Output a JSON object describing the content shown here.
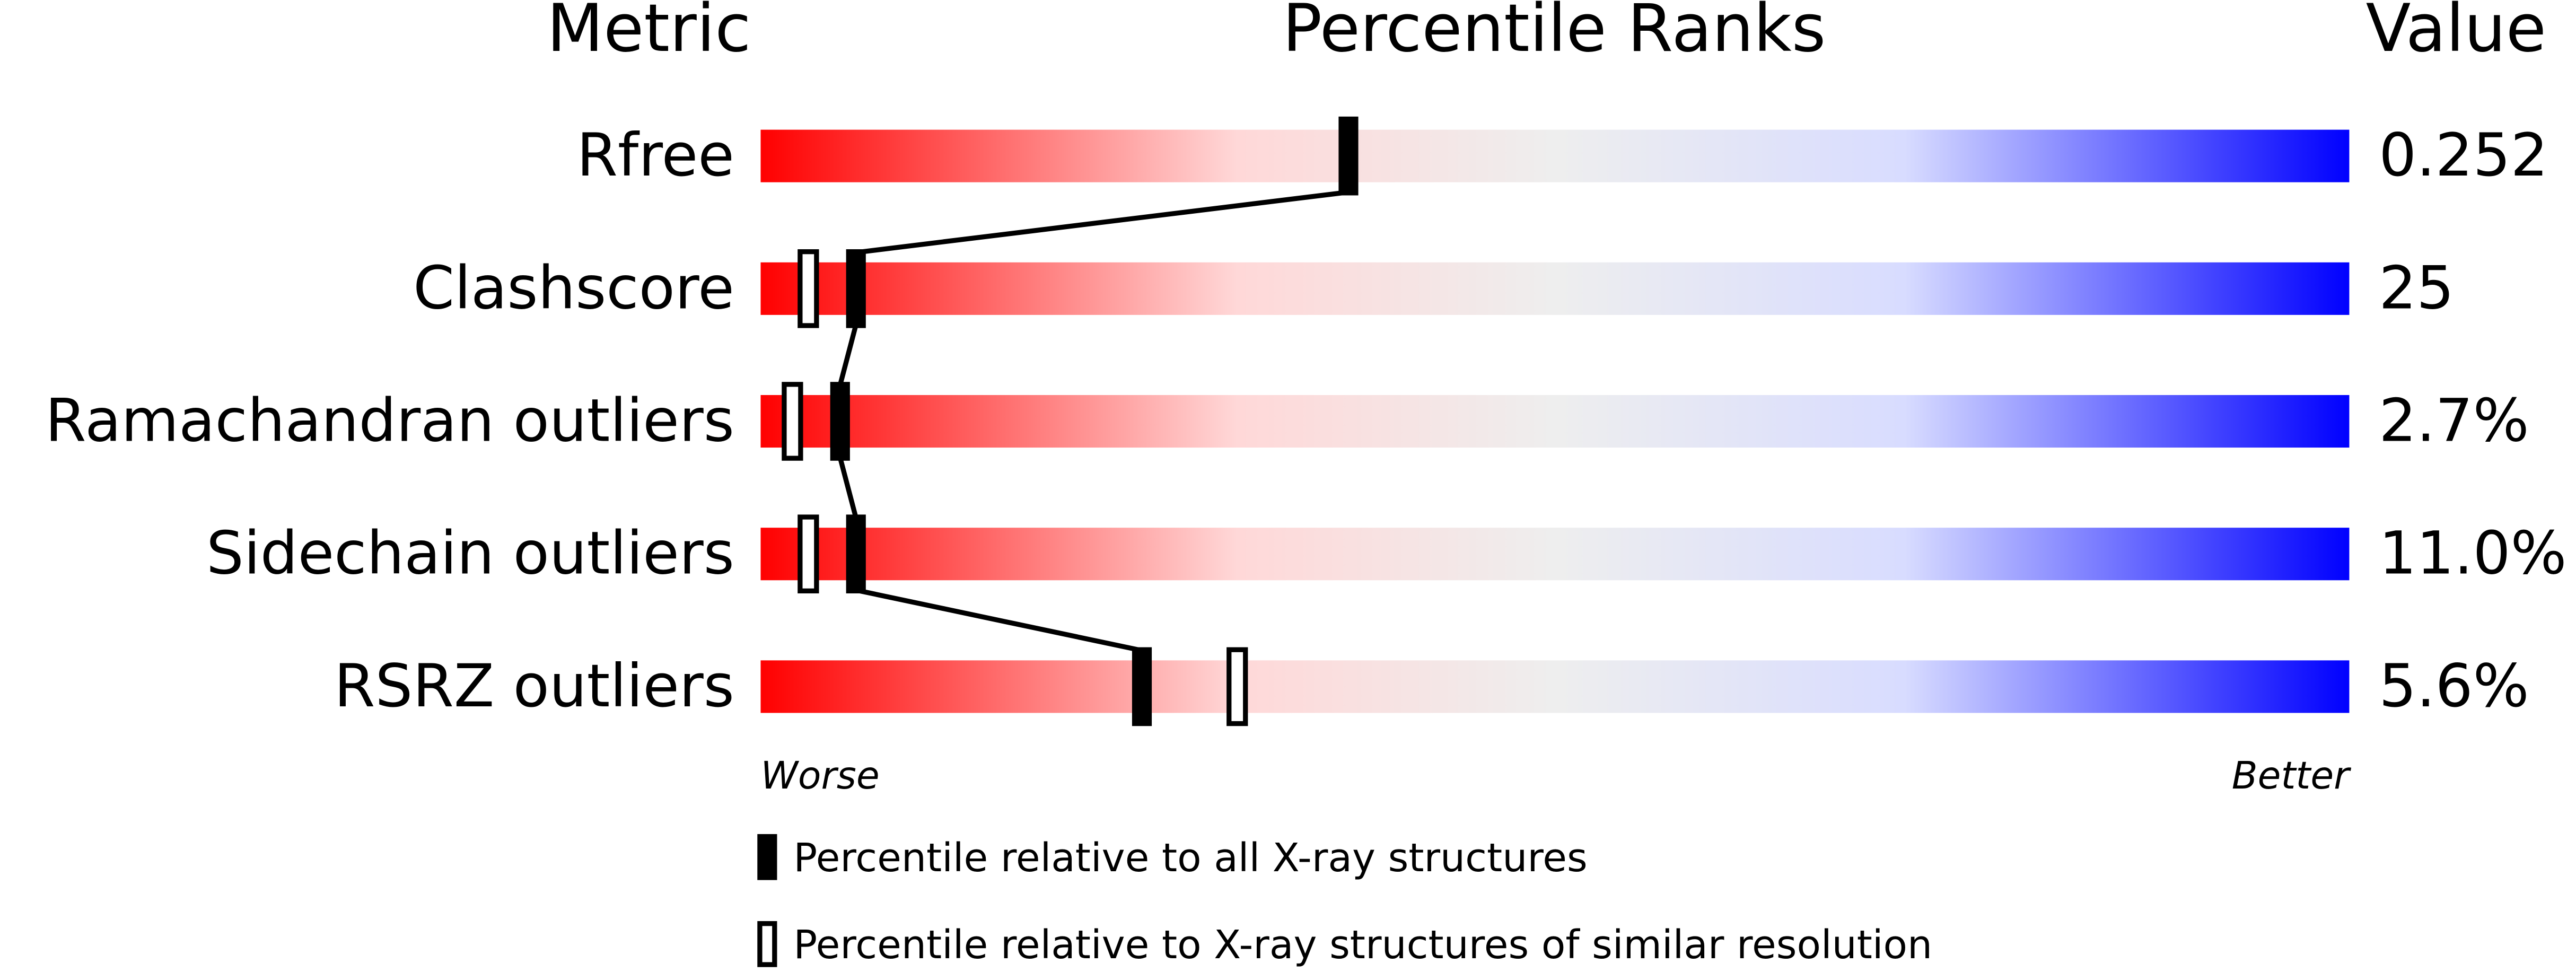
{
  "chart_data": {
    "type": "percentile",
    "title": "Percentile Ranks",
    "metric_header": "Metric",
    "value_header": "Value",
    "categories": [
      "Rfree",
      "Clashscore",
      "Ramachandran outliers",
      "Sidechain outliers",
      "RSRZ outliers"
    ],
    "metric_values": [
      "0.252",
      "25",
      "2.7%",
      "11.0%",
      "5.6%"
    ],
    "series": [
      {
        "name": "Percentile relative to all X-ray structures",
        "color": "#000000",
        "filled": true,
        "values": [
          37,
          6,
          5,
          6,
          24
        ]
      },
      {
        "name": "Percentile relative to X-ray structures of similar resolution",
        "color": "#000000",
        "filled": false,
        "values": [
          null,
          3,
          2,
          3,
          30
        ]
      }
    ],
    "xlim": [
      0,
      100
    ],
    "x_low_label": "Worse",
    "x_high_label": "Better"
  }
}
